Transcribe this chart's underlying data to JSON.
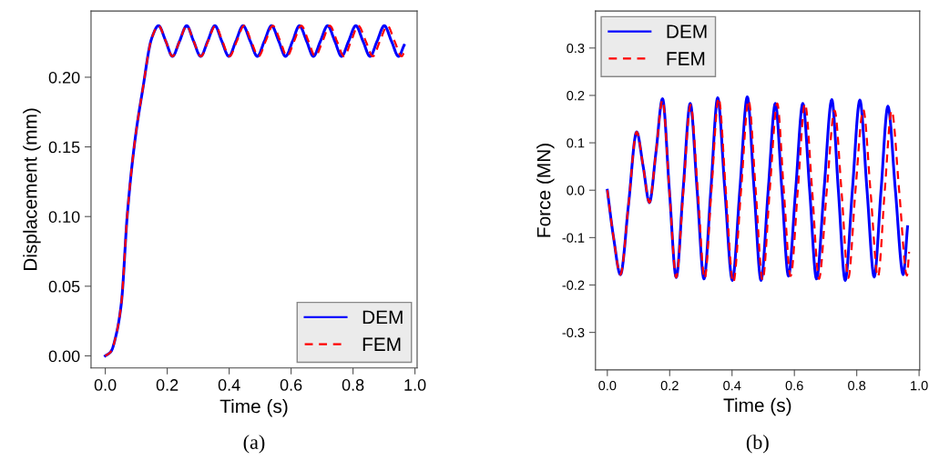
{
  "chart_data": [
    {
      "type": "line",
      "xlabel": "Time (s)",
      "ylabel": "Displacement (mm)",
      "annotations": [
        "(a)"
      ],
      "legend": "bottom right",
      "xlim": [
        -0.046,
        1.007
      ],
      "ylim": [
        -0.0087,
        0.2475
      ],
      "xticks": [
        {
          "value": 0,
          "label": "0.0"
        },
        {
          "value": 0.2,
          "label": "0.2"
        },
        {
          "value": 0.4,
          "label": "0.4"
        },
        {
          "value": 0.6,
          "label": "0.6"
        },
        {
          "value": 0.8,
          "label": "0.8"
        },
        {
          "value": 1,
          "label": "1.0"
        }
      ],
      "yticks": [
        {
          "value": 0,
          "label": "0.00"
        },
        {
          "value": 0.05,
          "label": "0.05"
        },
        {
          "value": 0.1,
          "label": "0.10"
        },
        {
          "value": 0.15,
          "label": "0.15"
        },
        {
          "value": 0.2,
          "label": "0.20"
        }
      ],
      "series": [
        {
          "name": "DEM",
          "color": "#0000ff",
          "line_style": "solid",
          "x": [
            0,
            0.018,
            0.035,
            0.052,
            0.071,
            0.096,
            0.12,
            0.15,
            0.172,
            0.195,
            0.217,
            0.24,
            0.263,
            0.285,
            0.308,
            0.331,
            0.354,
            0.376,
            0.399,
            0.422,
            0.445,
            0.468,
            0.491,
            0.514,
            0.537,
            0.56,
            0.582,
            0.605,
            0.627,
            0.65,
            0.672,
            0.695,
            0.718,
            0.741,
            0.763,
            0.786,
            0.809,
            0.832,
            0.855,
            0.878,
            0.901,
            0.924,
            0.947,
            0.965
          ],
          "values": [
            0,
            0.003,
            0.015,
            0.038,
            0.101,
            0.155,
            0.19,
            0.228,
            0.237,
            0.226,
            0.215,
            0.226,
            0.237,
            0.226,
            0.215,
            0.226,
            0.237,
            0.226,
            0.215,
            0.226,
            0.237,
            0.226,
            0.215,
            0.226,
            0.237,
            0.226,
            0.215,
            0.226,
            0.237,
            0.226,
            0.215,
            0.226,
            0.237,
            0.226,
            0.215,
            0.226,
            0.237,
            0.226,
            0.215,
            0.226,
            0.237,
            0.226,
            0.215,
            0.223
          ]
        },
        {
          "name": "FEM",
          "color": "#ff0000",
          "line_style": "dashed",
          "x": [
            0,
            0.018,
            0.035,
            0.052,
            0.071,
            0.096,
            0.12,
            0.15,
            0.172,
            0.195,
            0.217,
            0.24,
            0.263,
            0.285,
            0.309,
            0.332,
            0.356,
            0.378,
            0.401,
            0.425,
            0.448,
            0.471,
            0.495,
            0.518,
            0.541,
            0.565,
            0.587,
            0.61,
            0.633,
            0.656,
            0.678,
            0.702,
            0.725,
            0.748,
            0.771,
            0.794,
            0.817,
            0.841,
            0.864,
            0.887,
            0.911,
            0.934,
            0.957,
            0.965
          ],
          "values": [
            0,
            0.003,
            0.015,
            0.038,
            0.101,
            0.155,
            0.19,
            0.228,
            0.237,
            0.226,
            0.215,
            0.226,
            0.237,
            0.226,
            0.215,
            0.226,
            0.237,
            0.226,
            0.215,
            0.226,
            0.237,
            0.226,
            0.215,
            0.226,
            0.237,
            0.226,
            0.215,
            0.226,
            0.237,
            0.226,
            0.215,
            0.226,
            0.237,
            0.226,
            0.215,
            0.226,
            0.237,
            0.226,
            0.215,
            0.226,
            0.237,
            0.226,
            0.215,
            0.218
          ]
        }
      ]
    },
    {
      "type": "line",
      "xlabel": "Time (s)",
      "ylabel": "Force (MN)",
      "annotations": [
        "(b)"
      ],
      "legend": "top left",
      "xlim": [
        -0.038,
        1.002
      ],
      "ylim": [
        -0.379,
        0.378
      ],
      "xticks": [
        {
          "value": 0,
          "label": "0.0"
        },
        {
          "value": 0.2,
          "label": "0.2"
        },
        {
          "value": 0.4,
          "label": "0.4"
        },
        {
          "value": 0.6,
          "label": "0.6"
        },
        {
          "value": 0.8,
          "label": "0.8"
        },
        {
          "value": 1,
          "label": "1.0"
        }
      ],
      "yticks": [
        {
          "value": -0.3,
          "label": "-0.3"
        },
        {
          "value": -0.2,
          "label": "-0.2"
        },
        {
          "value": -0.1,
          "label": "-0.1"
        },
        {
          "value": 0,
          "label": "0.0"
        },
        {
          "value": 0.1,
          "label": "0.1"
        },
        {
          "value": 0.2,
          "label": "0.2"
        },
        {
          "value": 0.3,
          "label": "0.3"
        }
      ],
      "series": [
        {
          "name": "DEM",
          "color": "#0000ff",
          "line_style": "solid",
          "x": [
            0,
            0.02,
            0.042,
            0.068,
            0.094,
            0.115,
            0.135,
            0.156,
            0.177,
            0.199,
            0.221,
            0.243,
            0.266,
            0.288,
            0.31,
            0.332,
            0.354,
            0.377,
            0.401,
            0.425,
            0.449,
            0.471,
            0.493,
            0.516,
            0.539,
            0.56,
            0.581,
            0.604,
            0.627,
            0.649,
            0.671,
            0.695,
            0.72,
            0.741,
            0.763,
            0.786,
            0.81,
            0.833,
            0.856,
            0.878,
            0.9,
            0.924,
            0.949,
            0.963
          ],
          "values": [
            0,
            -0.1,
            -0.178,
            -0.03,
            0.123,
            0.05,
            -0.026,
            0.08,
            0.193,
            0,
            -0.184,
            0,
            0.183,
            0,
            -0.187,
            0,
            0.195,
            0,
            -0.19,
            0,
            0.197,
            0,
            -0.19,
            0,
            0.183,
            0,
            -0.181,
            0,
            0.183,
            0,
            -0.187,
            0,
            0.191,
            0,
            -0.19,
            0,
            0.19,
            0,
            -0.183,
            0,
            0.177,
            0,
            -0.178,
            -0.077
          ]
        },
        {
          "name": "FEM",
          "color": "#ff0000",
          "line_style": "dashed",
          "x": [
            0,
            0.02,
            0.042,
            0.068,
            0.094,
            0.115,
            0.135,
            0.156,
            0.177,
            0.199,
            0.221,
            0.244,
            0.267,
            0.29,
            0.312,
            0.334,
            0.357,
            0.38,
            0.404,
            0.429,
            0.453,
            0.476,
            0.498,
            0.521,
            0.545,
            0.566,
            0.588,
            0.611,
            0.634,
            0.657,
            0.679,
            0.704,
            0.729,
            0.751,
            0.773,
            0.796,
            0.821,
            0.844,
            0.868,
            0.89,
            0.912,
            0.936,
            0.961,
            0.968
          ],
          "values": [
            0,
            -0.1,
            -0.178,
            -0.03,
            0.123,
            0.05,
            -0.026,
            0.08,
            0.19,
            0,
            -0.184,
            0,
            0.18,
            0,
            -0.187,
            0,
            0.195,
            0,
            -0.195,
            0,
            0.19,
            0,
            -0.19,
            0,
            0.183,
            0,
            -0.181,
            0,
            0.183,
            0,
            -0.187,
            0,
            0.168,
            0,
            -0.185,
            0,
            0.17,
            0,
            -0.183,
            0,
            0.168,
            0,
            -0.18,
            -0.13
          ]
        }
      ]
    }
  ]
}
